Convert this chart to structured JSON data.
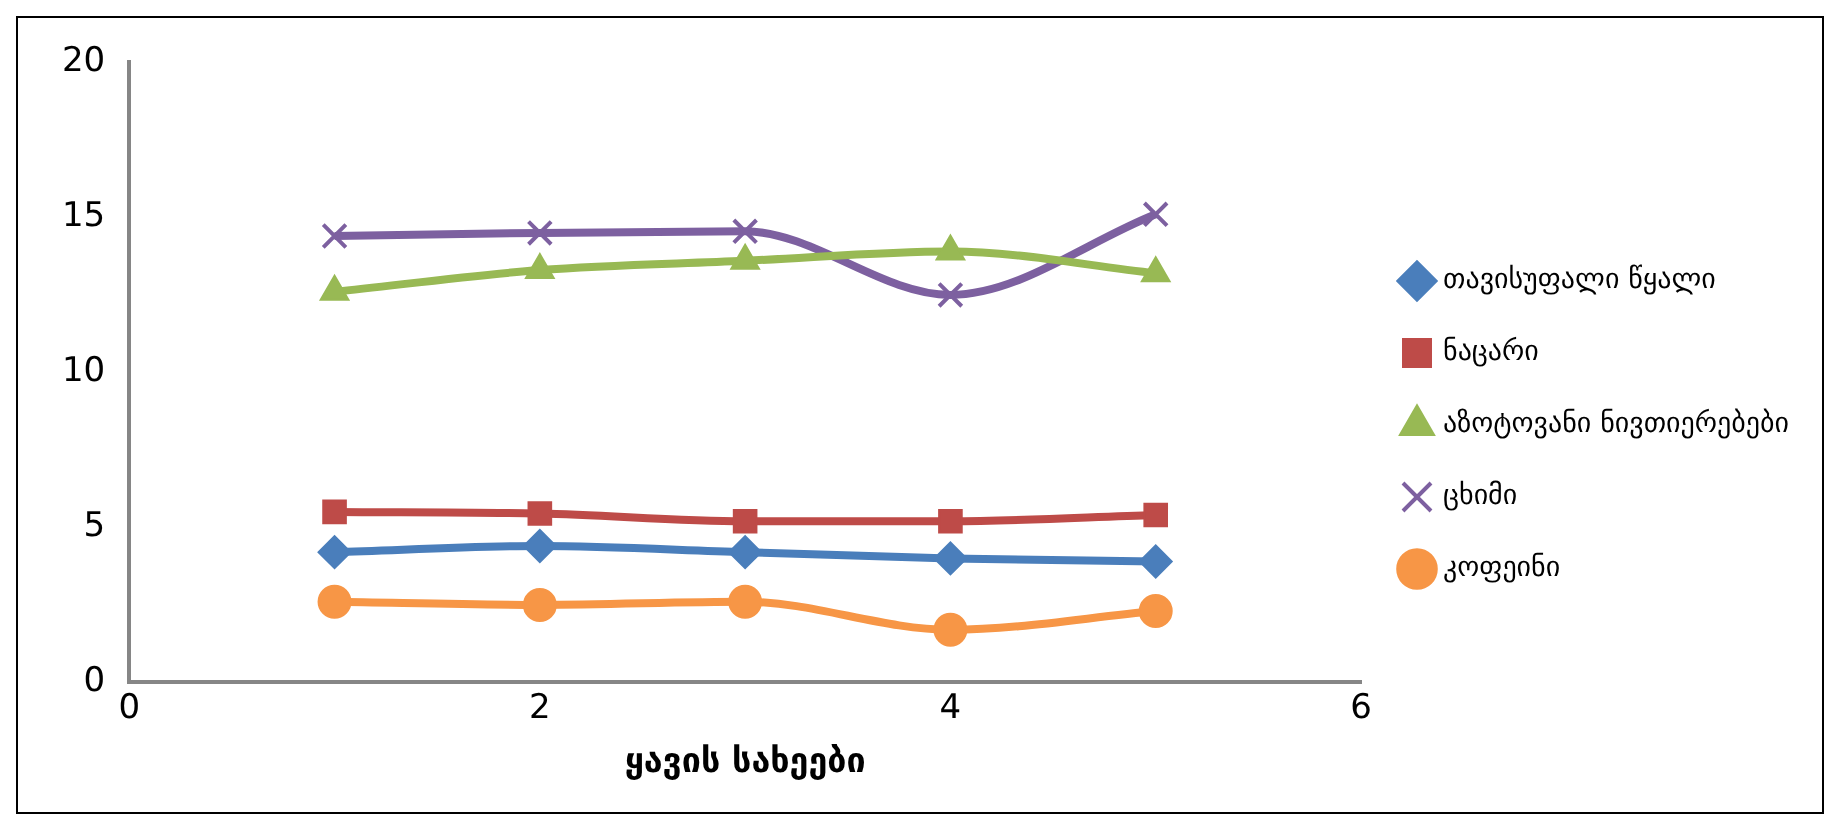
{
  "chart_data": {
    "type": "line",
    "xlabel": "ყავის სახეები",
    "x": [
      1,
      2,
      3,
      4,
      5
    ],
    "xlim": [
      0,
      6
    ],
    "xticks": [
      0,
      2,
      4,
      6
    ],
    "ylim": [
      0,
      20
    ],
    "yticks": [
      0,
      5,
      10,
      15,
      20
    ],
    "grid": false,
    "legend": "right",
    "series": [
      {
        "name": "თავისუფალი წყალი",
        "color": "#4a7ebb",
        "marker": "diamond",
        "values": [
          4.2,
          4.4,
          4.2,
          4.0,
          3.9
        ]
      },
      {
        "name": "ნაცარი",
        "color": "#be4b48",
        "marker": "square",
        "values": [
          5.5,
          5.45,
          5.2,
          5.2,
          5.4
        ]
      },
      {
        "name": "აზოტოვანი ნივთიერებები",
        "color": "#98b954",
        "marker": "triangle",
        "values": [
          12.6,
          13.3,
          13.6,
          13.9,
          13.2
        ]
      },
      {
        "name": "ცხიმი",
        "color": "#7d60a0",
        "marker": "cross",
        "values": [
          14.4,
          14.5,
          14.55,
          12.5,
          15.1
        ]
      },
      {
        "name": "კოფეინი",
        "color": "#f79646",
        "marker": "circle",
        "values": [
          2.6,
          2.5,
          2.6,
          1.7,
          2.3
        ]
      }
    ]
  }
}
